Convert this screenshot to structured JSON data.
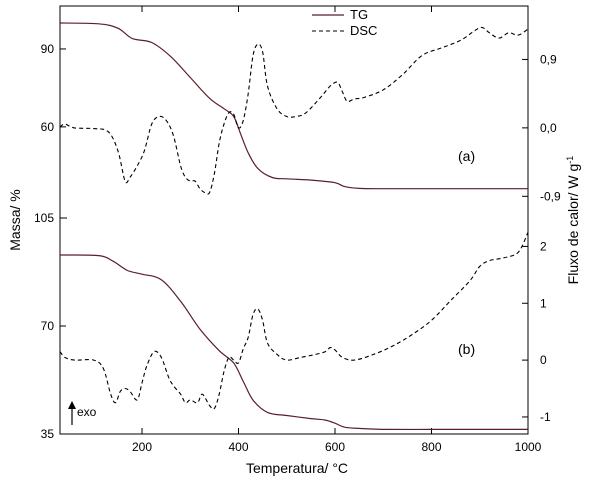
{
  "chart_data": {
    "type": "line",
    "xlabel": "Temperatura/ °C",
    "ylabel_left": "Massa/ %",
    "ylabel_right": "Fluxo de calor/ W g⁻¹",
    "xlim": [
      30,
      1000
    ],
    "x_ticks": [
      "200",
      "400",
      "600",
      "800",
      "1000"
    ],
    "x_tick_values": [
      200,
      400,
      600,
      800,
      1000
    ],
    "legend": {
      "placement": "top-center",
      "entries": [
        {
          "label": "TG",
          "style": "solid"
        },
        {
          "label": "DSC",
          "style": "dashed"
        }
      ]
    },
    "annotation": "exo",
    "panels": [
      {
        "label": "(a)",
        "left_ticks": [
          "90",
          "60"
        ],
        "left_tick_values": [
          90,
          60
        ],
        "right_ticks": [
          "0,9",
          "0,0",
          "-0,9"
        ],
        "right_tick_values": [
          0.9,
          0.0,
          -0.9
        ],
        "ylim_left": [
          28,
          105
        ],
        "ylim_right": [
          -1.08,
          1.55
        ],
        "series": [
          {
            "name": "TG",
            "axis": "left",
            "x": [
              30,
              110,
              150,
              180,
              220,
              260,
              300,
              340,
              370,
              390,
              405,
              420,
              440,
              470,
              500,
              550,
              600,
              620,
              650,
              700,
              800,
              900,
              1000
            ],
            "y": [
              100,
              99.7,
              98,
              94,
              92.5,
              87,
              79,
              71,
              67,
              64,
              57,
              50,
              44,
              40.5,
              40,
              39.5,
              38.5,
              37,
              36.3,
              36.2,
              36.2,
              36.2,
              36.2
            ]
          },
          {
            "name": "DSC",
            "axis": "right",
            "x": [
              30,
              40,
              60,
              100,
              130,
              150,
              165,
              175,
              190,
              205,
              220,
              235,
              250,
              265,
              280,
              290,
              300,
              310,
              320,
              330,
              340,
              350,
              360,
              370,
              380,
              390,
              400,
              410,
              420,
              430,
              440,
              450,
              460,
              480,
              500,
              520,
              540,
              570,
              590,
              605,
              615,
              625,
              640,
              660,
              700,
              740,
              780,
              820,
              860,
              890,
              905,
              920,
              940,
              960,
              980,
              1000
            ],
            "y": [
              0.01,
              0.05,
              0.0,
              -0.01,
              -0.05,
              -0.3,
              -0.7,
              -0.65,
              -0.5,
              -0.3,
              0.05,
              0.15,
              0.1,
              -0.1,
              -0.5,
              -0.65,
              -0.7,
              -0.7,
              -0.8,
              -0.85,
              -0.85,
              -0.6,
              -0.2,
              0.05,
              0.2,
              0.18,
              0.0,
              0.1,
              0.45,
              0.95,
              1.1,
              1.0,
              0.55,
              0.25,
              0.15,
              0.15,
              0.2,
              0.4,
              0.55,
              0.6,
              0.48,
              0.35,
              0.38,
              0.4,
              0.5,
              0.7,
              0.95,
              1.05,
              1.15,
              1.28,
              1.32,
              1.25,
              1.18,
              1.25,
              1.22,
              1.3
            ]
          }
        ]
      },
      {
        "label": "(b)",
        "left_ticks": [
          "105",
          "70",
          "35"
        ],
        "left_tick_values": [
          105,
          70,
          35
        ],
        "right_ticks": [
          "2",
          "1",
          "0",
          "-1"
        ],
        "right_tick_values": [
          2,
          1,
          0,
          -1
        ],
        "ylim_left": [
          35,
          105
        ],
        "ylim_right": [
          -1.3,
          2.5
        ],
        "series": [
          {
            "name": "TG",
            "axis": "left",
            "x": [
              30,
              110,
              140,
              170,
              200,
              240,
              280,
              320,
              360,
              390,
              410,
              430,
              460,
              500,
              550,
              580,
              600,
              620,
              650,
              700,
              800,
              900,
              1000
            ],
            "y": [
              93,
              92.8,
              91,
              88,
              86.8,
              85,
              78,
              69,
              62,
              58,
              52,
              46,
              42,
              41,
              40,
              39.5,
              38.5,
              37.2,
              36.8,
              36.5,
              36.5,
              36.5,
              36.5
            ]
          },
          {
            "name": "DSC",
            "axis": "right",
            "x": [
              30,
              40,
              60,
              100,
              120,
              135,
              145,
              155,
              165,
              175,
              190,
              200,
              210,
              225,
              240,
              255,
              265,
              280,
              290,
              300,
              315,
              325,
              340,
              350,
              360,
              370,
              380,
              390,
              400,
              410,
              420,
              430,
              440,
              450,
              460,
              480,
              500,
              530,
              560,
              580,
              590,
              600,
              615,
              640,
              680,
              720,
              760,
              800,
              840,
              880,
              900,
              920,
              950,
              980,
              1000
            ],
            "y": [
              0.15,
              0.05,
              0.0,
              0.0,
              -0.15,
              -0.6,
              -0.75,
              -0.55,
              -0.5,
              -0.55,
              -0.7,
              -0.4,
              -0.1,
              0.15,
              0.05,
              -0.3,
              -0.45,
              -0.6,
              -0.75,
              -0.7,
              -0.75,
              -0.6,
              -0.8,
              -0.85,
              -0.6,
              -0.2,
              0.05,
              0.0,
              -0.05,
              0.2,
              0.4,
              0.8,
              0.9,
              0.7,
              0.3,
              0.1,
              0.0,
              0.05,
              0.1,
              0.15,
              0.22,
              0.18,
              0.05,
              0.0,
              0.1,
              0.25,
              0.45,
              0.7,
              1.05,
              1.4,
              1.65,
              1.75,
              1.8,
              1.9,
              2.25
            ]
          }
        ]
      }
    ]
  }
}
